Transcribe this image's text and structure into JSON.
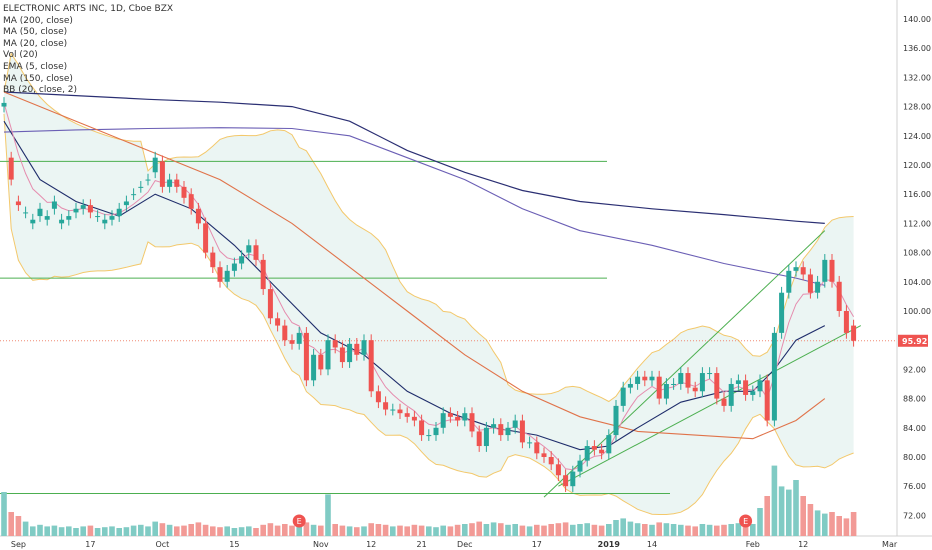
{
  "title": "ELECTRONIC ARTS INC, 1D, Cboe BZX",
  "legend": [
    "MA (200, close)",
    "MA (50, close)",
    "MA (20, close)",
    "Vol (20)",
    "EMA (5, close)",
    "MA (150, close)",
    "BB (20, close, 2)"
  ],
  "colors": {
    "up": "#26a69a",
    "down": "#ef5350",
    "vol_up": "#80cbc4",
    "vol_down": "#f29a96",
    "ma200": "#2b2f73",
    "ma150": "#6b5fb5",
    "ma50": "#e0734a",
    "ma20": "#1f2d6b",
    "ema5": "#e58cae",
    "bb": "#f3c86b",
    "bb_fill": "#e9f4f2",
    "hlines": "#4caf50",
    "price_line": "#f08a74"
  },
  "current_price_label": "95.92",
  "earnings_marker": "E",
  "chart_data": {
    "type": "candlestick",
    "y_ticks": [
      "140.00",
      "136.00",
      "132.00",
      "128.00",
      "124.00",
      "120.00",
      "116.00",
      "112.00",
      "108.00",
      "104.00",
      "100.00",
      "96.00",
      "92.00",
      "88.00",
      "84.00",
      "80.00",
      "76.00",
      "72.00"
    ],
    "ylim": [
      70,
      141.5
    ],
    "x_ticks": [
      {
        "label": "Sep",
        "index": 2
      },
      {
        "label": "17",
        "index": 12
      },
      {
        "label": "Oct",
        "index": 22
      },
      {
        "label": "15",
        "index": 32
      },
      {
        "label": "Nov",
        "index": 44
      },
      {
        "label": "12",
        "index": 51
      },
      {
        "label": "21",
        "index": 58
      },
      {
        "label": "Dec",
        "index": 64
      },
      {
        "label": "17",
        "index": 74
      },
      {
        "label": "2019",
        "index": 84
      },
      {
        "label": "14",
        "index": 90
      },
      {
        "label": "Feb",
        "index": 104
      },
      {
        "label": "12",
        "index": 111
      },
      {
        "label": "Mar",
        "index": 123
      }
    ],
    "closes": [
      128.5,
      118,
      114.5,
      113.5,
      112.5,
      114,
      113,
      115,
      112.5,
      113,
      114,
      114.5,
      113.5,
      113,
      112.5,
      113,
      114,
      115,
      116,
      117,
      118,
      121,
      117,
      118,
      117,
      115.5,
      114,
      112,
      108,
      106,
      104,
      105.5,
      106.5,
      107.5,
      109,
      107,
      103,
      99,
      98,
      96,
      95.5,
      97,
      90.5,
      94,
      92,
      96,
      95,
      93,
      95.5,
      94,
      96,
      89,
      87.5,
      86.5,
      86.5,
      86,
      85.5,
      85,
      83,
      83,
      84,
      86,
      85.5,
      85,
      86,
      83.5,
      81.5,
      84,
      84.5,
      83,
      84,
      85,
      82,
      82,
      80.5,
      80,
      79,
      77.5,
      76,
      78,
      79.5,
      81.5,
      81,
      80.5,
      83,
      87,
      89.5,
      90,
      91,
      90.5,
      91,
      88,
      90,
      90,
      91.5,
      89.5,
      89,
      91.5,
      91.5,
      88,
      87,
      90,
      90.5,
      88.5,
      89,
      90.5,
      85,
      97,
      102.5,
      105.5,
      106,
      105,
      102.5,
      104,
      107,
      104,
      100,
      97,
      95.92
    ],
    "opens": [
      128,
      121,
      115,
      113.5,
      112,
      113,
      112.5,
      114,
      112,
      112.5,
      113.5,
      114,
      114.5,
      113,
      112,
      112.5,
      113,
      114.5,
      116,
      117,
      118,
      119,
      120.5,
      117,
      118,
      117,
      116,
      114,
      112,
      108,
      106,
      104,
      105.5,
      106.5,
      108,
      109,
      107,
      103,
      99,
      98,
      96,
      95.5,
      97,
      90.5,
      94,
      92,
      96,
      95,
      93,
      95.5,
      94,
      96,
      89,
      87.5,
      86.5,
      86.5,
      86,
      85.5,
      85,
      83,
      83,
      84,
      86,
      85.5,
      85,
      86,
      83.5,
      81.5,
      84,
      84.5,
      83,
      84,
      85,
      82,
      82,
      80.5,
      80,
      79,
      77.5,
      76,
      78,
      79.5,
      81.5,
      81,
      80.5,
      83,
      87,
      89.5,
      90,
      91,
      90.5,
      91,
      88,
      90,
      90,
      91.5,
      89.5,
      89,
      91.5,
      91.5,
      88,
      87,
      90,
      90.5,
      88.5,
      89,
      90.5,
      85,
      97,
      102.5,
      105.5,
      106,
      105,
      102.5,
      104,
      107,
      104,
      100,
      98
    ],
    "volumes": [
      0.55,
      0.3,
      0.25,
      0.18,
      0.12,
      0.14,
      0.12,
      0.13,
      0.11,
      0.12,
      0.1,
      0.12,
      0.13,
      0.1,
      0.11,
      0.12,
      0.1,
      0.11,
      0.13,
      0.14,
      0.12,
      0.18,
      0.16,
      0.14,
      0.12,
      0.13,
      0.15,
      0.17,
      0.14,
      0.12,
      0.11,
      0.12,
      0.1,
      0.11,
      0.12,
      0.1,
      0.14,
      0.16,
      0.13,
      0.15,
      0.13,
      0.12,
      0.17,
      0.14,
      0.13,
      0.52,
      0.15,
      0.13,
      0.12,
      0.11,
      0.12,
      0.16,
      0.15,
      0.14,
      0.12,
      0.13,
      0.12,
      0.14,
      0.13,
      0.12,
      0.11,
      0.13,
      0.12,
      0.14,
      0.15,
      0.16,
      0.18,
      0.15,
      0.17,
      0.16,
      0.14,
      0.15,
      0.13,
      0.12,
      0.14,
      0.13,
      0.15,
      0.16,
      0.17,
      0.14,
      0.15,
      0.16,
      0.14,
      0.13,
      0.15,
      0.2,
      0.22,
      0.18,
      0.16,
      0.15,
      0.14,
      0.17,
      0.16,
      0.15,
      0.14,
      0.13,
      0.12,
      0.15,
      0.14,
      0.13,
      0.14,
      0.15,
      0.16,
      0.13,
      0.15,
      0.35,
      0.5,
      0.88,
      0.62,
      0.58,
      0.7,
      0.5,
      0.4,
      0.32,
      0.28,
      0.3,
      0.25,
      0.22,
      0.3
    ]
  }
}
